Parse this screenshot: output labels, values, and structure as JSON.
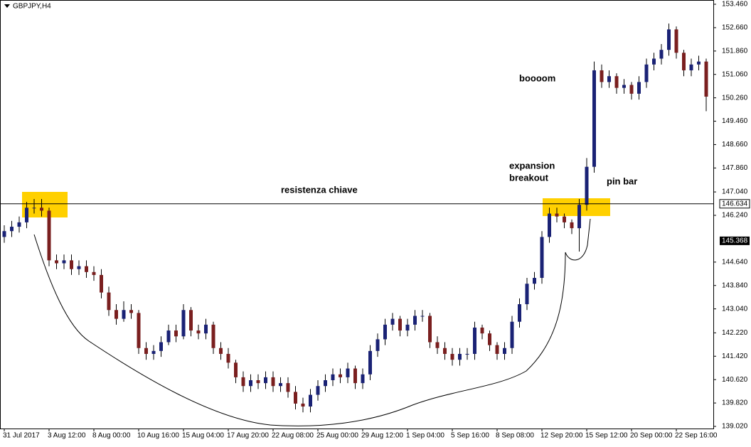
{
  "chart_data": {
    "type": "candlestick",
    "title": "GBPJPY,H4",
    "categories": [
      "31 Jul 2017",
      null,
      null,
      null,
      null,
      null,
      "3 Aug 12:00",
      null,
      null,
      null,
      null,
      null,
      "8 Aug 00:00",
      null,
      null,
      null,
      null,
      null,
      "10 Aug 16:00",
      null,
      null,
      null,
      null,
      null,
      "15 Aug 04:00",
      null,
      null,
      null,
      null,
      null,
      "17 Aug 20:00",
      null,
      null,
      null,
      null,
      null,
      "22 Aug 08:00",
      null,
      null,
      null,
      null,
      null,
      "25 Aug 00:00",
      null,
      null,
      null,
      null,
      null,
      "29 Aug 12:00",
      null,
      null,
      null,
      null,
      null,
      "1 Sep 04:00",
      null,
      null,
      null,
      null,
      null,
      "5 Sep 16:00",
      null,
      null,
      null,
      null,
      null,
      "8 Sep 08:00",
      null,
      null,
      null,
      null,
      null,
      "12 Sep 20:00",
      null,
      null,
      null,
      null,
      null,
      "15 Sep 12:00",
      null,
      null,
      null,
      null,
      null,
      "20 Sep 00:00",
      null,
      null,
      null,
      null,
      null,
      "22 Sep 16:00",
      null,
      null,
      null,
      null
    ],
    "open": [
      145.5,
      145.7,
      145.85,
      146.0,
      146.5,
      146.5,
      146.4,
      144.7,
      144.6,
      144.7,
      144.4,
      144.5,
      144.3,
      144.2,
      143.6,
      143.0,
      142.7,
      143.0,
      142.9,
      141.7,
      141.5,
      141.6,
      141.9,
      142.3,
      142.1,
      143.0,
      142.3,
      142.2,
      142.5,
      141.7,
      141.5,
      141.2,
      140.7,
      140.4,
      140.6,
      140.5,
      140.7,
      140.4,
      140.5,
      140.2,
      139.8,
      139.7,
      140.1,
      140.4,
      140.6,
      140.8,
      140.7,
      141.0,
      140.5,
      140.8,
      141.6,
      142.0,
      142.5,
      142.7,
      142.3,
      142.5,
      142.8,
      142.8,
      141.9,
      141.7,
      141.5,
      141.3,
      141.5,
      141.5,
      142.4,
      142.2,
      141.8,
      141.5,
      141.7,
      142.6,
      143.2,
      143.9,
      144.1,
      145.5,
      146.3,
      146.2,
      146.0,
      145.8,
      146.6,
      147.9,
      151.2,
      150.8,
      151.0,
      150.6,
      150.7,
      150.4,
      150.8,
      151.4,
      151.6,
      151.9,
      152.6,
      151.8,
      151.2,
      151.4,
      151.5
    ],
    "high": [
      145.9,
      146.05,
      146.2,
      146.7,
      146.8,
      146.8,
      146.5,
      144.9,
      144.9,
      144.9,
      144.7,
      144.7,
      144.5,
      144.4,
      143.8,
      143.2,
      143.3,
      143.2,
      143.0,
      141.9,
      141.8,
      142.1,
      142.5,
      142.5,
      143.2,
      143.1,
      142.5,
      142.7,
      142.6,
      141.9,
      141.7,
      141.3,
      140.9,
      140.8,
      140.8,
      140.9,
      140.9,
      140.7,
      140.7,
      140.4,
      140.0,
      140.3,
      140.6,
      140.8,
      141.0,
      141.0,
      141.2,
      141.1,
      141.0,
      141.8,
      142.2,
      142.7,
      142.9,
      142.8,
      142.7,
      143.0,
      143.0,
      142.9,
      142.1,
      141.9,
      141.7,
      141.7,
      141.7,
      142.6,
      142.5,
      142.3,
      141.9,
      141.9,
      142.8,
      143.4,
      144.1,
      144.3,
      145.7,
      146.5,
      146.5,
      146.3,
      146.1,
      146.8,
      148.2,
      151.5,
      151.4,
      151.2,
      151.1,
      150.9,
      150.8,
      151.0,
      151.6,
      151.8,
      152.1,
      152.8,
      152.7,
      151.9,
      151.6,
      151.7,
      151.6
    ],
    "low": [
      145.3,
      145.5,
      145.65,
      145.8,
      146.3,
      146.2,
      144.5,
      144.4,
      144.4,
      144.2,
      144.2,
      144.1,
      144.0,
      143.4,
      142.8,
      142.5,
      142.6,
      142.7,
      141.5,
      141.3,
      141.3,
      141.4,
      141.8,
      141.9,
      142.0,
      142.1,
      142.0,
      142.0,
      141.5,
      141.3,
      141.0,
      140.5,
      140.2,
      140.2,
      140.3,
      140.3,
      140.2,
      140.2,
      140.0,
      139.6,
      139.5,
      139.5,
      139.9,
      140.2,
      140.4,
      140.5,
      140.5,
      140.3,
      140.3,
      140.6,
      141.4,
      141.8,
      142.3,
      142.1,
      142.1,
      142.3,
      142.6,
      141.7,
      141.5,
      141.3,
      141.1,
      141.1,
      141.3,
      141.3,
      142.0,
      141.6,
      141.3,
      141.3,
      141.5,
      142.4,
      143.0,
      143.7,
      143.9,
      145.3,
      146.0,
      145.8,
      145.6,
      145.0,
      146.4,
      147.7,
      150.6,
      150.6,
      150.4,
      150.4,
      150.2,
      150.2,
      150.6,
      151.2,
      151.4,
      151.7,
      151.6,
      151.0,
      151.0,
      151.2,
      149.8
    ],
    "close": [
      145.7,
      145.85,
      146.0,
      146.5,
      146.5,
      146.4,
      144.7,
      144.6,
      144.7,
      144.4,
      144.5,
      144.3,
      144.2,
      143.6,
      143.0,
      142.7,
      143.0,
      142.9,
      141.7,
      141.5,
      141.6,
      141.9,
      142.3,
      142.1,
      143.0,
      142.3,
      142.2,
      142.5,
      141.7,
      141.5,
      141.2,
      140.7,
      140.4,
      140.6,
      140.5,
      140.7,
      140.4,
      140.5,
      140.2,
      139.8,
      139.7,
      140.1,
      140.4,
      140.6,
      140.8,
      140.7,
      141.0,
      140.5,
      140.8,
      141.6,
      142.0,
      142.5,
      142.7,
      142.3,
      142.5,
      142.8,
      142.8,
      141.9,
      141.7,
      141.5,
      141.3,
      141.5,
      141.5,
      142.4,
      142.2,
      141.8,
      141.5,
      141.7,
      142.6,
      143.2,
      143.9,
      144.1,
      145.5,
      146.3,
      146.2,
      146.0,
      145.8,
      146.6,
      147.9,
      151.2,
      150.8,
      151.0,
      150.6,
      150.7,
      150.4,
      150.8,
      151.4,
      151.6,
      151.9,
      152.6,
      151.8,
      151.2,
      151.4,
      151.5,
      150.3
    ],
    "up_color": "#1a2275",
    "down_color": "#7a1f1f",
    "ylim": [
      139.02,
      153.46
    ],
    "yticks": [
      {
        "value": 153.46,
        "label": "153.460"
      },
      {
        "value": 152.66,
        "label": "152.660"
      },
      {
        "value": 151.86,
        "label": "151.860"
      },
      {
        "value": 151.06,
        "label": "151.060"
      },
      {
        "value": 150.26,
        "label": "150.260"
      },
      {
        "value": 149.46,
        "label": "149.460"
      },
      {
        "value": 148.66,
        "label": "148.660"
      },
      {
        "value": 147.86,
        "label": "147.860"
      },
      {
        "value": 147.04,
        "label": "147.040"
      },
      {
        "value": 146.24,
        "label": "146.240"
      },
      {
        "value": 144.64,
        "label": "144.640"
      },
      {
        "value": 143.84,
        "label": "143.840"
      },
      {
        "value": 143.04,
        "label": "143.040"
      },
      {
        "value": 142.22,
        "label": "142.220"
      },
      {
        "value": 141.42,
        "label": "141.420"
      },
      {
        "value": 140.62,
        "label": "140.620"
      },
      {
        "value": 139.82,
        "label": "139.820"
      },
      {
        "value": 139.02,
        "label": "139.020"
      }
    ],
    "price_line": {
      "value": 146.634,
      "label": "146.634"
    },
    "current_price": {
      "value": 145.368,
      "label": "145.368"
    },
    "annotations": [
      "resistenza chiave",
      "expansion",
      "breakout",
      "pin bar",
      "boooom"
    ]
  }
}
